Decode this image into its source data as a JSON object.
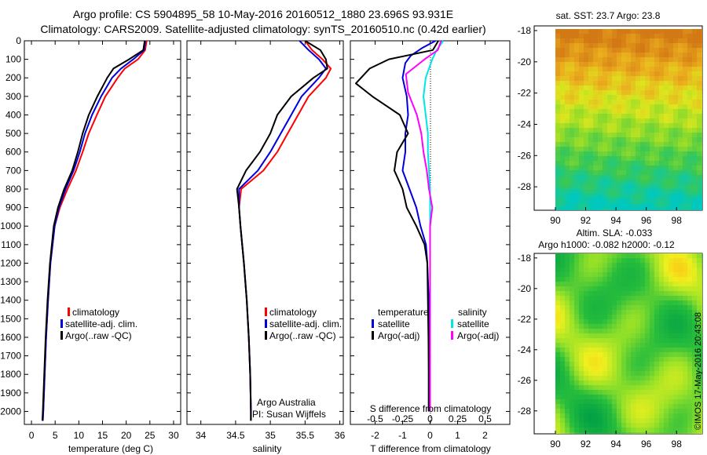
{
  "figure": {
    "title_line1": "Argo profile: CS 5904895_58 10-May-2016 20160512_1880 23.696S 93.931E",
    "title_line2": "Climatology: CARS2009. Satellite-adjusted climatology: synTS_20160510.nc (0.42d earlier)",
    "credit": "©IMOS 17-May-2016 20:43:08",
    "attribution_line1": "Argo Australia",
    "attribution_line2": "PI: Susan Wijffels"
  },
  "colors": {
    "climatology": "#ff0000",
    "satellite": "#0000dd",
    "argo": "#000000",
    "satellite_salinity": "#00e5e5",
    "argo_salinity": "#ff00ff"
  },
  "chart_data": [
    {
      "type": "line",
      "xlabel": "temperature (deg C)",
      "ylabel": "",
      "xlim": [
        -1.5,
        31.5
      ],
      "ylim": [
        2070,
        0
      ],
      "xticks": [
        0,
        5,
        10,
        15,
        20,
        25,
        30
      ],
      "yticks": [
        0,
        100,
        200,
        300,
        400,
        500,
        600,
        700,
        800,
        900,
        1000,
        1100,
        1200,
        1300,
        1400,
        1500,
        1600,
        1700,
        1800,
        1900,
        2000
      ],
      "legend": [
        "climatology",
        "satellite-adj. clim.",
        "Argo(..raw -QC)"
      ],
      "legend_position": "lower-center",
      "series": [
        {
          "name": "climatology",
          "depth": [
            0,
            50,
            100,
            150,
            200,
            300,
            400,
            500,
            600,
            700,
            800,
            900,
            1000,
            1200,
            1400,
            1600,
            1800,
            2000,
            2050
          ],
          "values": [
            24.3,
            24.0,
            22.5,
            19.7,
            18.2,
            15.6,
            13.8,
            12.1,
            10.8,
            9.4,
            7.6,
            6.0,
            4.9,
            4.0,
            3.5,
            3.1,
            2.8,
            2.5,
            2.4
          ]
        },
        {
          "name": "satellite-adj. clim.",
          "depth": [
            0,
            50,
            100,
            150,
            200,
            300,
            400,
            500,
            600,
            700,
            800,
            900,
            1000,
            1200,
            1400,
            1600,
            1800,
            2000,
            2050
          ],
          "values": [
            24.0,
            23.8,
            21.5,
            18.9,
            17.0,
            14.7,
            12.8,
            11.3,
            10.2,
            8.9,
            7.2,
            5.8,
            4.9,
            4.0,
            3.5,
            3.1,
            2.8,
            2.5,
            2.4
          ]
        },
        {
          "name": "Argo(..raw -QC)",
          "depth": [
            0,
            50,
            100,
            150,
            200,
            300,
            400,
            500,
            600,
            700,
            800,
            900,
            1000,
            1200,
            1400,
            1600,
            1800,
            2000,
            2050
          ],
          "values": [
            23.9,
            23.6,
            20.6,
            17.3,
            16.0,
            13.9,
            12.1,
            10.8,
            9.8,
            8.6,
            6.9,
            5.6,
            4.7,
            3.9,
            3.4,
            3.0,
            2.7,
            2.4,
            2.3
          ]
        }
      ]
    },
    {
      "type": "line",
      "xlabel": "salinity",
      "ylabel": "",
      "xlim": [
        33.8,
        36.05
      ],
      "ylim": [
        2070,
        0
      ],
      "xticks": [
        34,
        34.5,
        35,
        35.5,
        36
      ],
      "legend": [
        "climatology",
        "satellite-adj. clim.",
        "Argo(..raw -QC)"
      ],
      "legend_position": "lower-right",
      "series": [
        {
          "name": "climatology",
          "depth": [
            0,
            50,
            100,
            150,
            200,
            300,
            400,
            500,
            600,
            700,
            800,
            900,
            1000,
            1200,
            1400,
            1600,
            1800,
            2000,
            2050
          ],
          "values": [
            35.5,
            35.6,
            35.75,
            35.87,
            35.8,
            35.55,
            35.4,
            35.25,
            35.1,
            34.9,
            34.58,
            34.55,
            34.57,
            34.62,
            34.66,
            34.69,
            34.71,
            34.72,
            34.72
          ]
        },
        {
          "name": "satellite-adj. clim.",
          "depth": [
            0,
            50,
            100,
            150,
            200,
            300,
            400,
            500,
            600,
            700,
            800,
            900,
            1000,
            1200,
            1400,
            1600,
            1800,
            2000,
            2050
          ],
          "values": [
            35.42,
            35.55,
            35.7,
            35.8,
            35.7,
            35.45,
            35.3,
            35.15,
            35.0,
            34.82,
            34.55,
            34.55,
            34.57,
            34.62,
            34.66,
            34.69,
            34.71,
            34.72,
            34.72
          ]
        },
        {
          "name": "Argo(..raw -QC)",
          "depth": [
            0,
            50,
            100,
            150,
            200,
            300,
            400,
            500,
            600,
            700,
            800,
            900,
            1000,
            1200,
            1400,
            1600,
            1800,
            2000,
            2050
          ],
          "values": [
            35.5,
            35.72,
            35.8,
            35.82,
            35.62,
            35.3,
            35.1,
            35.0,
            34.85,
            34.65,
            34.52,
            34.55,
            34.57,
            34.62,
            34.66,
            34.69,
            34.71,
            34.72,
            34.72
          ]
        }
      ]
    },
    {
      "type": "line",
      "xlabel": "T difference from climatology",
      "top_xlabel": "S difference from climatology",
      "ylabel": "",
      "xlim": [
        -2.9,
        2.9
      ],
      "ylim": [
        2070,
        0
      ],
      "xticks": [
        -2,
        -1,
        0,
        1,
        2
      ],
      "top_xticks": [
        -0.5,
        -0.25,
        0,
        0.25,
        0.5
      ],
      "top_xtick_labels": [
        "-0.5",
        "-0.25",
        "0",
        "0.25",
        "0.5"
      ],
      "reference_line_x": 0,
      "legend_groups": [
        "temperature",
        "salinity"
      ],
      "legend": [
        "satellite",
        "Argo(-adj)",
        "satellite",
        "Argo(-adj)"
      ],
      "legend_position": "lower-center",
      "series": [
        {
          "name": "satellite",
          "group": "temperature",
          "depth": [
            0,
            40,
            80,
            120,
            200,
            300,
            400,
            500,
            600,
            700,
            800,
            900,
            1000,
            1100,
            1200,
            1400,
            1600,
            1800,
            2000
          ],
          "values": [
            0.2,
            -0.3,
            -0.7,
            -0.9,
            -1.0,
            -0.85,
            -0.8,
            -0.9,
            -0.9,
            -1.0,
            -0.75,
            -0.5,
            -0.35,
            -0.15,
            -0.1,
            -0.05,
            -0.05,
            -0.05,
            -0.05
          ]
        },
        {
          "name": "Argo(-adj)",
          "group": "temperature",
          "depth": [
            0,
            50,
            100,
            150,
            230,
            300,
            400,
            500,
            600,
            700,
            800,
            900,
            1000,
            1100,
            1200,
            1400,
            1600,
            1800,
            2000
          ],
          "values": [
            0.3,
            0.1,
            -1.5,
            -2.2,
            -2.7,
            -2.1,
            -1.1,
            -0.8,
            -1.2,
            -1.3,
            -1.0,
            -0.85,
            -0.5,
            -0.2,
            -0.1,
            -0.08,
            -0.06,
            -0.05,
            -0.05
          ]
        },
        {
          "name": "satellite",
          "group": "salinity",
          "depth": [
            0,
            50,
            100,
            200,
            300,
            400,
            500,
            600,
            700,
            800,
            900,
            1000,
            1200,
            1400,
            1600,
            1800,
            2000
          ],
          "values": [
            0.12,
            0.06,
            0.02,
            -0.04,
            -0.06,
            -0.04,
            -0.02,
            -0.02,
            -0.01,
            0.0,
            0.0,
            0.0,
            0.0,
            0.0,
            0.0,
            0.0,
            0.0
          ]
        },
        {
          "name": "Argo(-adj)",
          "group": "salinity",
          "depth": [
            0,
            50,
            100,
            180,
            280,
            400,
            500,
            600,
            700,
            800,
            900,
            1000,
            1200,
            1400,
            1600,
            1800,
            2000
          ],
          "values": [
            0.1,
            0.07,
            -0.05,
            -0.22,
            -0.2,
            -0.12,
            -0.08,
            -0.06,
            -0.03,
            -0.01,
            0.02,
            0.0,
            0.0,
            0.0,
            0.0,
            0.0,
            0.0
          ]
        }
      ]
    },
    {
      "type": "heatmap",
      "title": "sat. SST: 23.7 Argo: 23.8",
      "xlim": [
        88.6,
        99.7
      ],
      "ylim": [
        -29.5,
        -17.7
      ],
      "xticks": [
        90,
        92,
        94,
        96,
        98
      ],
      "yticks": [
        -18,
        -20,
        -22,
        -24,
        -26,
        -28
      ],
      "grid": false
    },
    {
      "type": "heatmap",
      "title_line1": "Altim. SLA: -0.033",
      "title_line2": "Argo h1000: -0.082 h2000: -0.12",
      "xlim": [
        88.6,
        99.7
      ],
      "ylim": [
        -29.5,
        -17.7
      ],
      "xticks": [
        90,
        92,
        94,
        96,
        98
      ],
      "yticks": [
        -18,
        -20,
        -22,
        -24,
        -26,
        -28
      ],
      "grid": false
    }
  ]
}
